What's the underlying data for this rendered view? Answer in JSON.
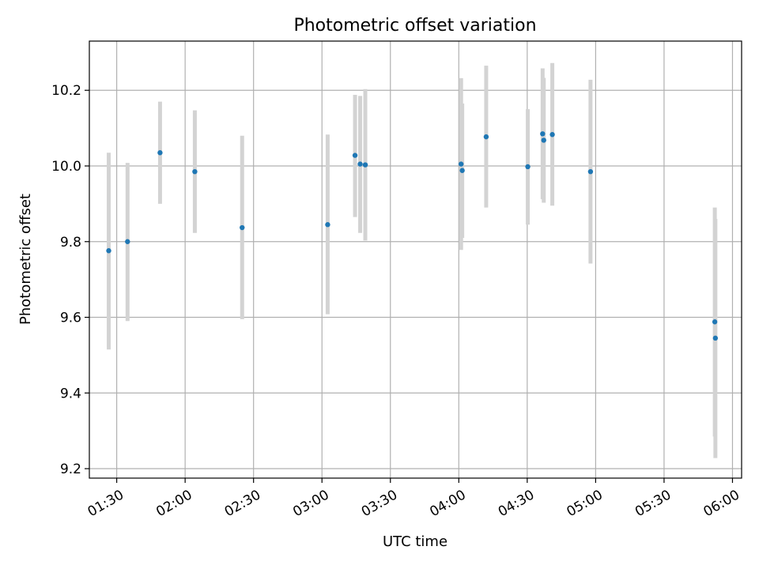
{
  "chart_data": {
    "type": "scatter",
    "title": "Photometric offset variation",
    "xlabel": "UTC time",
    "ylabel": "Photometric offset",
    "xlim": [
      "01:18",
      "06:04"
    ],
    "ylim": [
      9.175,
      10.33
    ],
    "grid": true,
    "x_ticks": [
      "01:30",
      "02:00",
      "02:30",
      "03:00",
      "03:30",
      "04:00",
      "04:30",
      "05:00",
      "05:30",
      "06:00"
    ],
    "y_ticks": [
      "9.2",
      "9.4",
      "9.6",
      "9.8",
      "10.0",
      "10.2"
    ],
    "points": [
      {
        "t": "01:26:30",
        "y": 9.776,
        "lo": 9.515,
        "hi": 10.035
      },
      {
        "t": "01:34:45",
        "y": 9.8,
        "lo": 9.59,
        "hi": 10.008
      },
      {
        "t": "01:49:00",
        "y": 10.035,
        "lo": 9.9,
        "hi": 10.17
      },
      {
        "t": "02:04:15",
        "y": 9.985,
        "lo": 9.823,
        "hi": 10.147
      },
      {
        "t": "02:25:00",
        "y": 9.837,
        "lo": 9.595,
        "hi": 10.08
      },
      {
        "t": "03:02:30",
        "y": 9.845,
        "lo": 9.608,
        "hi": 10.083
      },
      {
        "t": "03:14:30",
        "y": 10.028,
        "lo": 9.865,
        "hi": 10.188
      },
      {
        "t": "03:16:45",
        "y": 10.005,
        "lo": 9.823,
        "hi": 10.185
      },
      {
        "t": "03:19:00",
        "y": 10.003,
        "lo": 9.803,
        "hi": 10.203
      },
      {
        "t": "04:01:00",
        "y": 10.005,
        "lo": 9.778,
        "hi": 10.232
      },
      {
        "t": "04:01:30",
        "y": 9.988,
        "lo": 9.81,
        "hi": 10.165
      },
      {
        "t": "04:12:00",
        "y": 10.077,
        "lo": 9.89,
        "hi": 10.265
      },
      {
        "t": "04:30:15",
        "y": 9.998,
        "lo": 9.845,
        "hi": 10.15
      },
      {
        "t": "04:36:45",
        "y": 10.085,
        "lo": 9.912,
        "hi": 10.258
      },
      {
        "t": "04:37:15",
        "y": 10.068,
        "lo": 9.903,
        "hi": 10.233
      },
      {
        "t": "04:41:00",
        "y": 10.083,
        "lo": 9.895,
        "hi": 10.272
      },
      {
        "t": "04:57:45",
        "y": 9.985,
        "lo": 9.742,
        "hi": 10.228
      },
      {
        "t": "05:52:15",
        "y": 9.588,
        "lo": 9.285,
        "hi": 9.89
      },
      {
        "t": "05:52:30",
        "y": 9.545,
        "lo": 9.228,
        "hi": 9.86
      }
    ],
    "colors": {
      "point": "#1f77b4",
      "error_bar": "#d3d3d3",
      "grid": "#b0b0b0",
      "axes": "#000000"
    }
  }
}
